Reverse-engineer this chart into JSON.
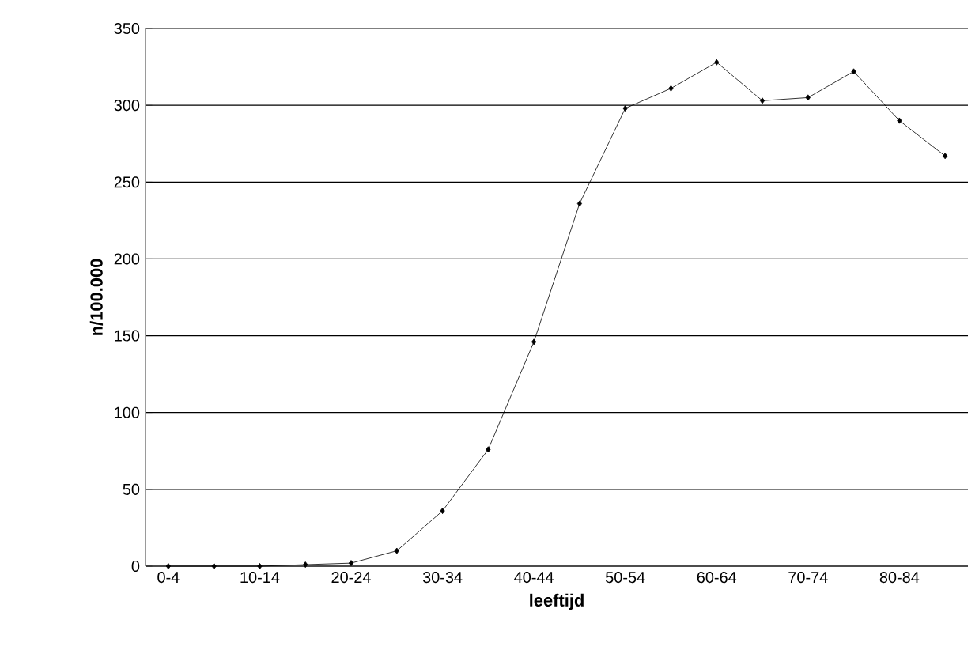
{
  "chart_data": {
    "type": "line",
    "xlabel": "leeftijd",
    "ylabel": "n/100.000",
    "categories": [
      "0-4",
      null,
      "10-14",
      null,
      "20-24",
      null,
      "30-34",
      null,
      "40-44",
      null,
      "50-54",
      null,
      "60-64",
      null,
      "70-74",
      null,
      "80-84",
      null
    ],
    "values": [
      0,
      0,
      0,
      1,
      2,
      10,
      36,
      76,
      146,
      236,
      298,
      311,
      328,
      303,
      305,
      322,
      290,
      267
    ],
    "color": "#000000",
    "marker": "diamond",
    "line_style": "solid",
    "ylim": [
      0,
      350
    ],
    "yticks": [
      0,
      50,
      100,
      150,
      200,
      250,
      300,
      350
    ],
    "grid": "y"
  }
}
